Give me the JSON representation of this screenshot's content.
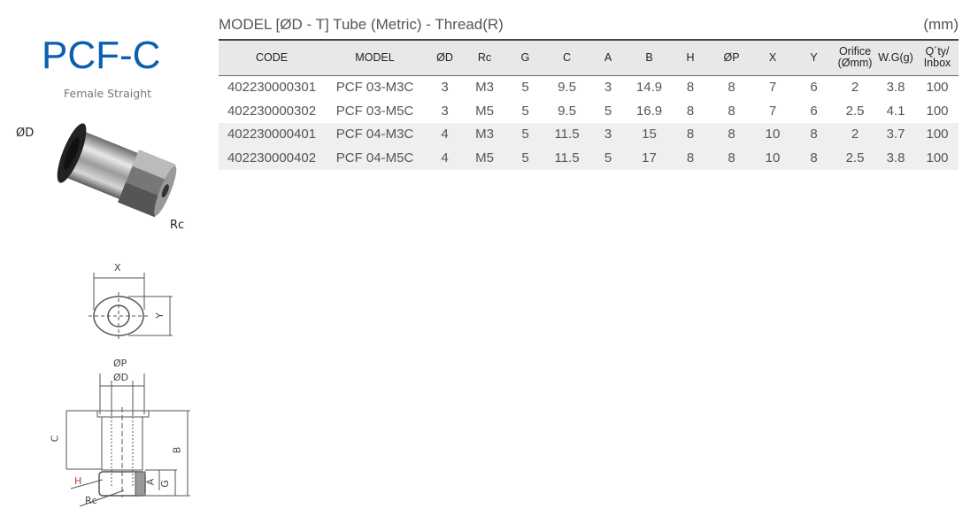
{
  "product": {
    "title": "PCF-C",
    "subtitle": "Female Straight",
    "labels": {
      "od": "ØD",
      "rc": "Rc"
    }
  },
  "diagram": {
    "x": "X",
    "y": "Y",
    "op": "ØP",
    "od": "ØD",
    "c": "C",
    "b": "B",
    "h": "H",
    "a": "A",
    "g": "G",
    "rc": "Rc"
  },
  "table": {
    "heading": "MODEL [ØD - T]  Tube (Metric) - Thread(R)",
    "unit": "(mm)",
    "columns": [
      "CODE",
      "MODEL",
      "ØD",
      "Rc",
      "G",
      "C",
      "A",
      "B",
      "H",
      "ØP",
      "X",
      "Y",
      "Orifice (Ømm)",
      "W.G(g)",
      "Q´ty/ Inbox"
    ],
    "rows": [
      [
        "402230000301",
        "PCF 03-M3C",
        "3",
        "M3",
        "5",
        "9.5",
        "3",
        "14.9",
        "8",
        "8",
        "7",
        "6",
        "2",
        "3.8",
        "100"
      ],
      [
        "402230000302",
        "PCF 03-M5C",
        "3",
        "M5",
        "5",
        "9.5",
        "5",
        "16.9",
        "8",
        "8",
        "7",
        "6",
        "2.5",
        "4.1",
        "100"
      ],
      [
        "402230000401",
        "PCF 04-M3C",
        "4",
        "M3",
        "5",
        "11.5",
        "3",
        "15",
        "8",
        "8",
        "10",
        "8",
        "2",
        "3.7",
        "100"
      ],
      [
        "402230000402",
        "PCF 04-M5C",
        "4",
        "M5",
        "5",
        "11.5",
        "5",
        "17",
        "8",
        "8",
        "10",
        "8",
        "2.5",
        "3.8",
        "100"
      ]
    ]
  },
  "colors": {
    "title": "#0a5fb0",
    "header_bg": "#e8e8ea",
    "alt_row_bg": "#efeff0"
  }
}
